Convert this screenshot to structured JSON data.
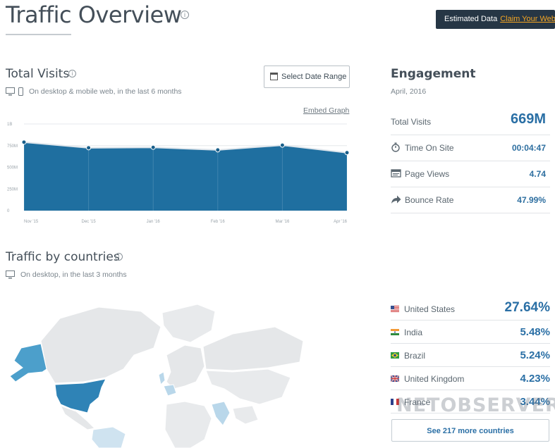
{
  "header": {
    "title": "Traffic Overview",
    "info_glyph": "i",
    "estimated_label": "Estimated Data",
    "claim_label": "Claim Your Webs"
  },
  "total_visits": {
    "title": "Total Visits",
    "info_glyph": "i",
    "note": "On desktop & mobile web, in the last 6 months",
    "date_button_label": "Select Date Range",
    "embed_label": "Embed Graph"
  },
  "chart_data": {
    "type": "area",
    "categories": [
      "Nov '15",
      "Dec '15",
      "Jan '16",
      "Feb '16",
      "Mar '16",
      "Apr '16"
    ],
    "values": [
      790,
      725,
      730,
      700,
      755,
      669
    ],
    "yticks": [
      "1B",
      "750M",
      "500M",
      "250M",
      "0"
    ],
    "ylim": [
      0,
      1000
    ],
    "series_color": "#1f6fa0",
    "grid": true
  },
  "engagement": {
    "title": "Engagement",
    "date": "April, 2016",
    "rows": [
      {
        "label": "Total Visits",
        "value": "669M",
        "icon": "none"
      },
      {
        "label": "Time On Site",
        "value": "00:04:47",
        "icon": "stopwatch-icon"
      },
      {
        "label": "Page Views",
        "value": "4.74",
        "icon": "page-views-icon"
      },
      {
        "label": "Bounce Rate",
        "value": "47.99%",
        "icon": "bounce-arrow-icon"
      }
    ]
  },
  "countries": {
    "title": "Traffic by countries",
    "info_glyph": "i",
    "note": "On desktop, in the last 3 months",
    "rows": [
      {
        "name": "United States",
        "pct": "27.64%",
        "flag": "us-flag-icon"
      },
      {
        "name": "India",
        "pct": "5.48%",
        "flag": "india-flag-icon"
      },
      {
        "name": "Brazil",
        "pct": "5.24%",
        "flag": "brazil-flag-icon"
      },
      {
        "name": "United Kingdom",
        "pct": "4.23%",
        "flag": "uk-flag-icon"
      },
      {
        "name": "France",
        "pct": "3.44%",
        "flag": "france-flag-icon"
      }
    ],
    "see_more_label": "See 217 more countries"
  },
  "watermark": "NETOBSERVER.RU"
}
